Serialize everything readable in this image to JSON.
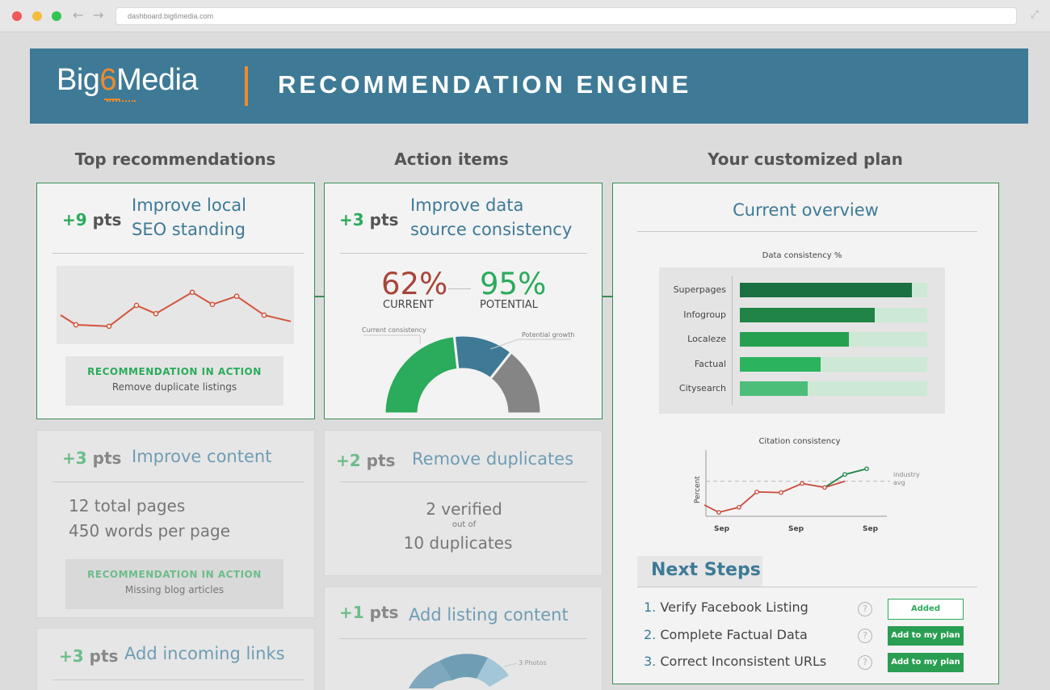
{
  "browser": {
    "url": "dashboard.big6media.com"
  },
  "header": {
    "logo_pre": "Big",
    "logo_six": "6",
    "logo_post": "Media",
    "title": "RECOMMENDATION ENGINE"
  },
  "columns": {
    "top": "Top recommendations",
    "actions": "Action items",
    "plan": "Your customized plan"
  },
  "cards": {
    "seo": {
      "pts": "+9",
      "unit": " pts",
      "title1": "Improve local",
      "title2": "SEO standing",
      "rec_head": "RECOMMENDATION IN ACTION",
      "rec_body": "Remove duplicate listings",
      "trend": [
        0.35,
        0.15,
        0.12,
        0.55,
        0.38,
        0.82,
        0.57,
        0.74,
        0.35,
        0.22
      ]
    },
    "content": {
      "pts": "+3",
      "unit": " pts",
      "title": "Improve content",
      "line1": "12 total pages",
      "line2": "450 words per page",
      "rec_head": "RECOMMENDATION IN ACTION",
      "rec_body": "Missing blog articles"
    },
    "links": {
      "pts": "+3",
      "unit": " pts",
      "title": "Add incoming links"
    },
    "consistency": {
      "pts": "+3",
      "unit": " pts",
      "title1": "Improve data",
      "title2": "source consistency",
      "current_val": "62%",
      "current_label": "CURRENT",
      "potential_val": "95%",
      "potential_label": "POTENTIAL",
      "gauge_left_label": "Current consistency",
      "gauge_right_label": "Potential growth",
      "current_frac": 0.62,
      "growth_frac": 0.33
    },
    "duplicates": {
      "pts": "+2",
      "unit": " pts",
      "title": "Remove duplicates",
      "line1": "2 verified",
      "line2": "out of",
      "line3": "10 duplicates"
    },
    "listing": {
      "pts": "+1",
      "unit": " pts",
      "title": "Add listing content",
      "donut_label": "3 Photos"
    }
  },
  "plan": {
    "overview": "Current overview",
    "chart_data": [
      {
        "type": "bar",
        "title": "Data consistency %",
        "categories": [
          "Superpages",
          "Infogroup",
          "Localeze",
          "Factual",
          "Citysearch"
        ],
        "values": [
          92,
          72,
          58,
          43,
          36
        ],
        "ylim": [
          0,
          100
        ],
        "colors": [
          "#1a7040",
          "#1f8445",
          "#25a050",
          "#2bb45d",
          "#4dbd7a"
        ]
      },
      {
        "type": "line",
        "title": "Citation consistency",
        "ylabel": "Percent",
        "x_ticks": [
          "Sep",
          "Sep",
          "Sep"
        ],
        "reference_label1": "industry",
        "reference_label2": "avg",
        "reference_value": 0.62,
        "series": [
          {
            "color": "#c94a3a",
            "values": [
              0.2,
              0.07,
              0.16,
              0.43,
              0.42,
              0.58,
              0.51,
              0.62
            ]
          },
          {
            "color": "#1f8445",
            "values": [
              0.51,
              0.74,
              0.84
            ]
          }
        ]
      }
    ],
    "next_steps_label": "Next Steps",
    "steps": [
      {
        "num": "1.",
        "text": "Verify Facebook Listing",
        "button": "Added"
      },
      {
        "num": "2.",
        "text": "Complete Factual Data",
        "button": "Add to my plan"
      },
      {
        "num": "3.",
        "text": "Correct Inconsistent URLs",
        "button": "Add to my plan"
      }
    ],
    "help_glyph": "?"
  }
}
